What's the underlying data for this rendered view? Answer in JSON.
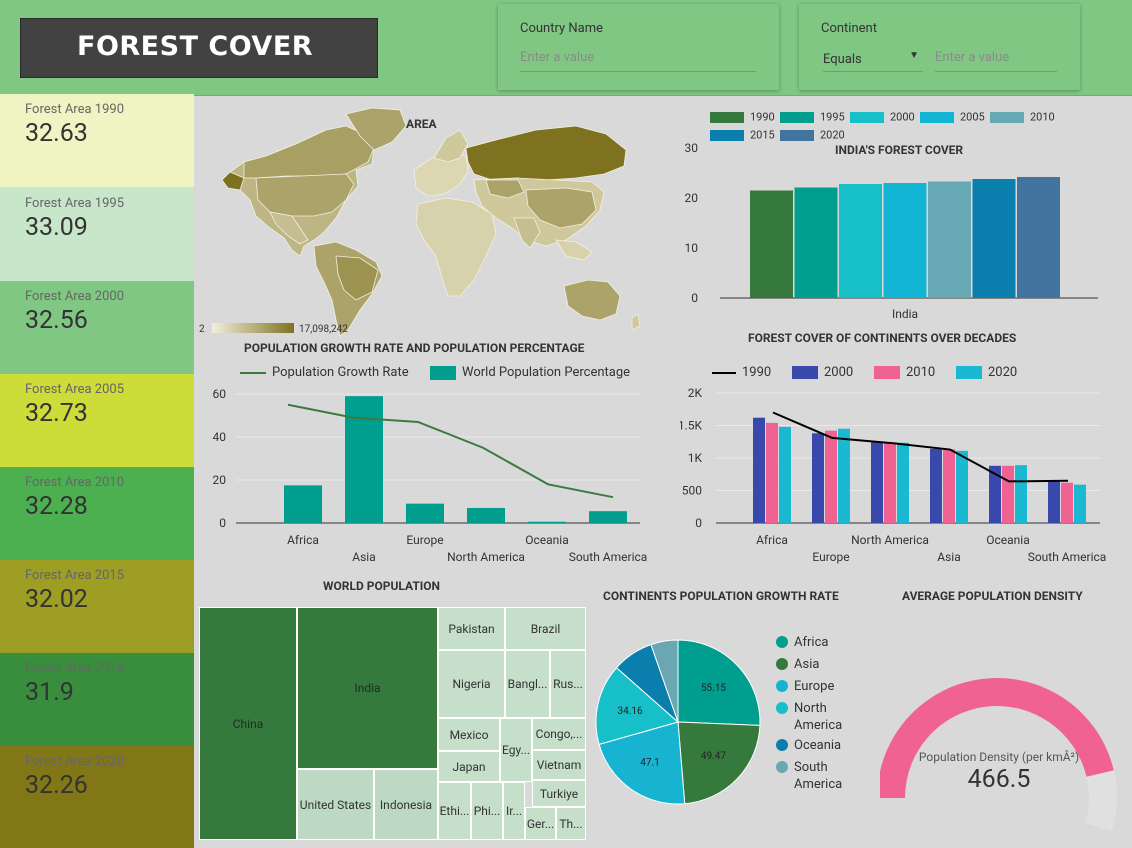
{
  "header": {
    "title": "FOREST COVER"
  },
  "filters": {
    "country": {
      "label": "Country Name",
      "placeholder": "Enter a value"
    },
    "continent": {
      "label": "Continent",
      "operator": "Equals",
      "placeholder": "Enter a value"
    }
  },
  "kpis": [
    {
      "label": "Forest Area 1990",
      "value": "32.63",
      "color": "#f0f4c3"
    },
    {
      "label": "Forest Area 1995",
      "value": "33.09",
      "color": "#c8e6c9"
    },
    {
      "label": "Forest Area 2000",
      "value": "32.56",
      "color": "#81c784"
    },
    {
      "label": "Forest Area 2005",
      "value": "32.73",
      "color": "#cddc39"
    },
    {
      "label": "Forest Area 2010",
      "value": "32.28",
      "color": "#4caf50"
    },
    {
      "label": "Forest Area 2015",
      "value": "32.02",
      "color": "#9e9d24"
    },
    {
      "label": "Forest Area 2018",
      "value": "31.9",
      "color": "#388e3c"
    },
    {
      "label": "Forest Area 2020",
      "value": "32.26",
      "color": "#827717"
    }
  ],
  "map": {
    "title": "AREA",
    "legend_min": "2",
    "legend_max": "17,098,242"
  },
  "chart_data": [
    {
      "type": "bar",
      "title": "INDIA'S FOREST COVER",
      "categories": [
        "India"
      ],
      "series": [
        {
          "name": "1990",
          "values": [
            21.5
          ],
          "color": "#357a3c"
        },
        {
          "name": "1995",
          "values": [
            22.1
          ],
          "color": "#009e8e"
        },
        {
          "name": "2000",
          "values": [
            22.8
          ],
          "color": "#17bfc9"
        },
        {
          "name": "2005",
          "values": [
            23.0
          ],
          "color": "#12b5d3"
        },
        {
          "name": "2010",
          "values": [
            23.3
          ],
          "color": "#66a8b3"
        },
        {
          "name": "2015",
          "values": [
            23.8
          ],
          "color": "#0a7fae"
        },
        {
          "name": "2020",
          "values": [
            24.2
          ],
          "color": "#43739f"
        }
      ],
      "ylim": [
        0,
        30
      ],
      "yticks": [
        "0",
        "10",
        "20",
        "30"
      ],
      "legend": "top"
    },
    {
      "type": "bar",
      "title": "POPULATION GROWTH RATE AND POPULATION PERCENTAGE",
      "categories": [
        "Africa",
        "Asia",
        "Europe",
        "North America",
        "Oceania",
        "South America"
      ],
      "series": [
        {
          "name": "Population Growth Rate",
          "kind": "line",
          "values": [
            55,
            49,
            47,
            35,
            18,
            12
          ],
          "color": "#3d7a3f"
        },
        {
          "name": "World Population Percentage",
          "kind": "bar",
          "values": [
            17.5,
            59,
            9,
            7,
            0.6,
            5.5
          ],
          "color": "#009e8e"
        }
      ],
      "ylim": [
        0,
        60
      ],
      "yticks": [
        "0",
        "20",
        "40",
        "60"
      ],
      "legend": "top"
    },
    {
      "type": "bar",
      "title": "FOREST COVER OF CONTINENTS OVER DECADES",
      "categories": [
        "Africa",
        "Europe",
        "North America",
        "Asia",
        "Oceania",
        "South America"
      ],
      "series": [
        {
          "name": "1990",
          "kind": "line",
          "values": [
            1700,
            1310,
            1230,
            1130,
            640,
            650
          ],
          "color": "#000000"
        },
        {
          "name": "2000",
          "kind": "bar",
          "values": [
            1620,
            1380,
            1240,
            1140,
            880,
            640
          ],
          "color": "#3949ab"
        },
        {
          "name": "2010",
          "kind": "bar",
          "values": [
            1540,
            1420,
            1235,
            1135,
            880,
            620
          ],
          "color": "#f06292"
        },
        {
          "name": "2020",
          "kind": "bar",
          "values": [
            1480,
            1450,
            1235,
            1110,
            890,
            590
          ],
          "color": "#1ab8d1"
        }
      ],
      "ylim": [
        0,
        2000
      ],
      "yticks": [
        "0",
        "500",
        "1K",
        "1.5K",
        "2K"
      ],
      "legend": "top"
    },
    {
      "type": "treemap",
      "title": "WORLD POPULATION",
      "items": [
        {
          "label": "China",
          "color": "#357a3c"
        },
        {
          "label": "India",
          "color": "#357a3c"
        },
        {
          "label": "United States",
          "color": "#bdd9c4"
        },
        {
          "label": "Indonesia",
          "color": "#bdd9c4"
        },
        {
          "label": "Pakistan",
          "color": "#c5dfcb"
        },
        {
          "label": "Brazil",
          "color": "#c5dfcb"
        },
        {
          "label": "Nigeria",
          "color": "#c5dfcb"
        },
        {
          "label": "Bangl...",
          "color": "#c5dfcb"
        },
        {
          "label": "Rus...",
          "color": "#c5dfcb"
        },
        {
          "label": "Mexico",
          "color": "#c5dfcb"
        },
        {
          "label": "Japan",
          "color": "#c5dfcb"
        },
        {
          "label": "Egy...",
          "color": "#c5dfcb"
        },
        {
          "label": "Congo,...",
          "color": "#c5dfcb"
        },
        {
          "label": "Vietnam",
          "color": "#c5dfcb"
        },
        {
          "label": "Turkiye",
          "color": "#c5dfcb"
        },
        {
          "label": "Ethi...",
          "color": "#c5dfcb"
        },
        {
          "label": "Phi...",
          "color": "#c5dfcb"
        },
        {
          "label": "Ir...",
          "color": "#c5dfcb"
        },
        {
          "label": "Ger...",
          "color": "#c5dfcb"
        },
        {
          "label": "Th...",
          "color": "#c5dfcb"
        }
      ]
    },
    {
      "type": "pie",
      "title": "CONTINENTS POPULATION GROWTH RATE",
      "labels": [
        "Africa",
        "Asia",
        "Europe",
        "North America",
        "Oceania",
        "South America"
      ],
      "values": [
        55.15,
        49.47,
        47.1,
        34.16,
        17.5,
        11.5
      ],
      "value_labels": [
        "55.15",
        "49.47",
        "47.1",
        "34.16",
        "",
        ""
      ],
      "colors": [
        "#009e8e",
        "#357a3c",
        "#17b4d1",
        "#17bfc9",
        "#0a7fae",
        "#6aa7b2"
      ],
      "legend": "right"
    },
    {
      "type": "gauge",
      "title": "AVERAGE POPULATION DENSITY",
      "label": "Population Density (per kmÂ²)",
      "value": "466.5",
      "fill_fraction": 0.85,
      "color": "#f06292"
    }
  ]
}
